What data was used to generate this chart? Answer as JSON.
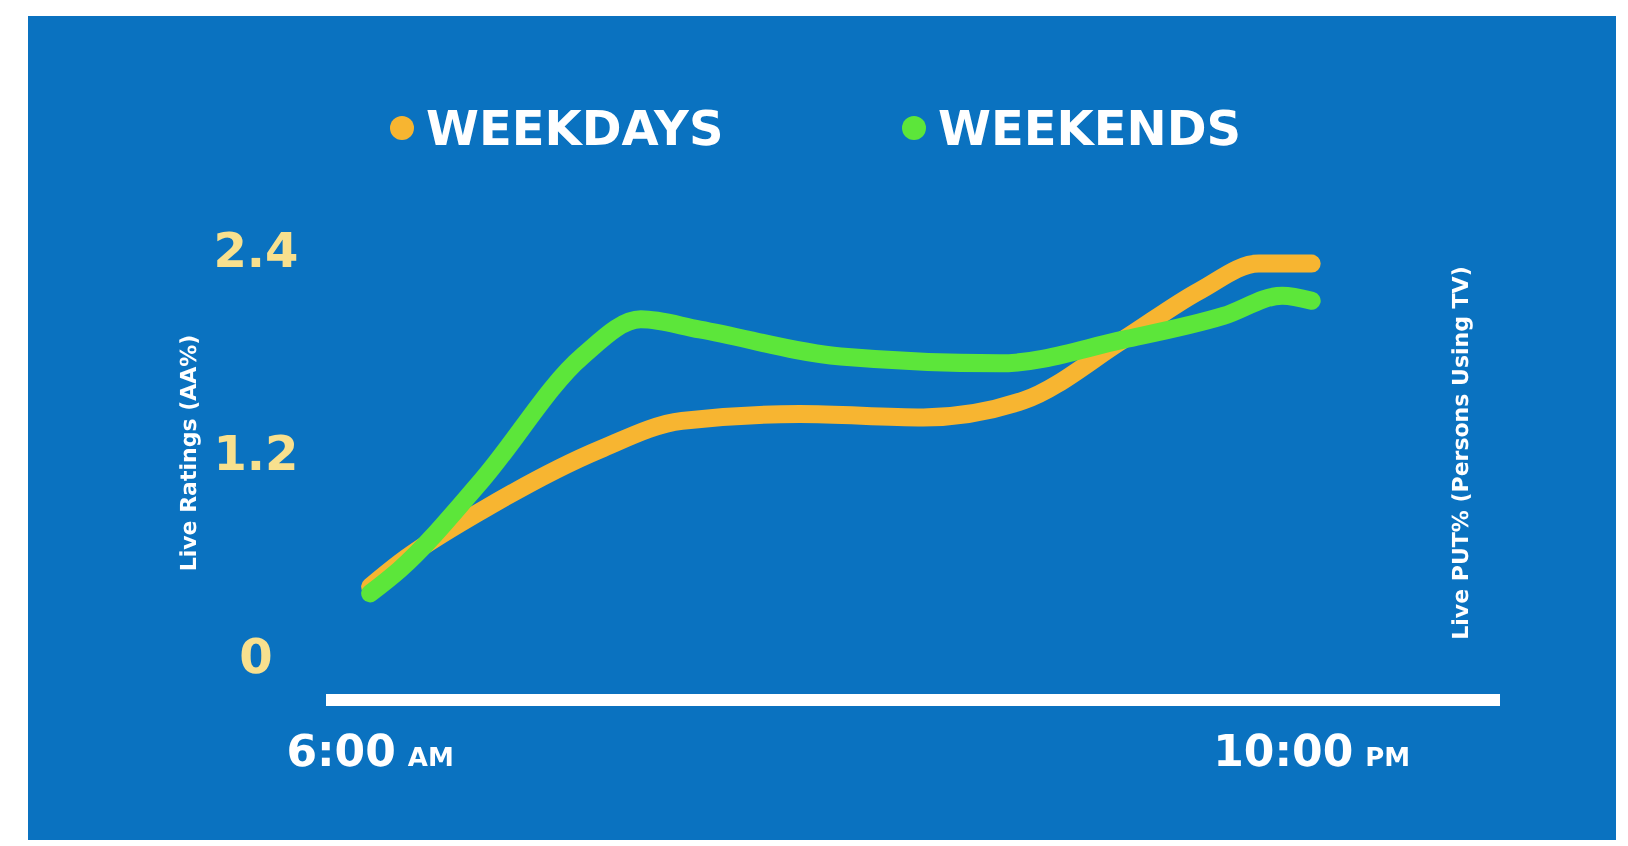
{
  "chart_data": {
    "type": "line",
    "ylabel": "Live Ratings (AA%)",
    "y2label": "Live PUT% (Persons Using TV)",
    "xlim": [
      5.25,
      25.2
    ],
    "xticks": [
      {
        "value": 6,
        "label": "6:00 AM"
      },
      {
        "value": 22,
        "label": "10:00 PM"
      }
    ],
    "ylim": [
      -0.26,
      2.4
    ],
    "yticks": [
      0,
      1.2,
      2.4
    ],
    "grid": false,
    "legend": "top",
    "marker": "none",
    "line_style": "solid",
    "series": [
      {
        "name": "WEEKDAYS",
        "color": "#f7b531",
        "x": [
          6,
          6.5,
          7.9,
          9.9,
          11.3,
          13.3,
          15.4,
          17.1,
          18.8,
          20.1,
          21.1,
          22
        ],
        "values": [
          0.41,
          0.55,
          0.86,
          1.22,
          1.39,
          1.43,
          1.41,
          1.51,
          1.87,
          2.16,
          2.32,
          2.32
        ]
      },
      {
        "name": "WEEKENDS",
        "color": "#5ce63a",
        "x": [
          6,
          6.5,
          7.9,
          9.6,
          10.6,
          11.6,
          14,
          16.7,
          18.8,
          20.5,
          21.5,
          22
        ],
        "values": [
          0.37,
          0.51,
          1.04,
          1.77,
          1.99,
          1.93,
          1.77,
          1.73,
          1.87,
          2.01,
          2.13,
          2.1
        ]
      }
    ]
  }
}
